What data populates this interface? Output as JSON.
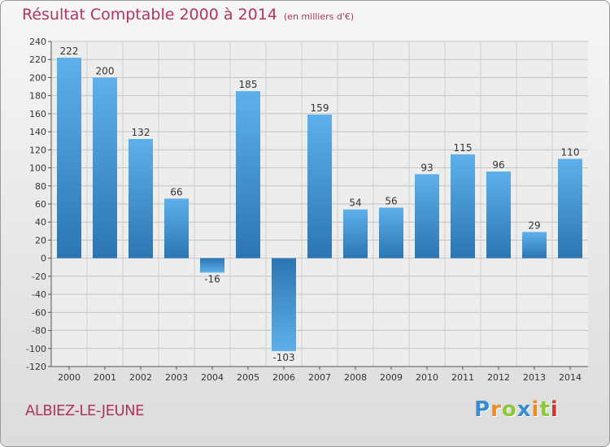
{
  "chart_data": {
    "type": "bar",
    "title": "Résultat Comptable 2000 à 2014",
    "unit_note": "(en milliers d'€)",
    "categories": [
      "2000",
      "2001",
      "2002",
      "2003",
      "2004",
      "2005",
      "2006",
      "2007",
      "2008",
      "2009",
      "2010",
      "2011",
      "2012",
      "2013",
      "2014"
    ],
    "values": [
      222,
      200,
      132,
      66,
      -16,
      185,
      -103,
      159,
      54,
      56,
      93,
      115,
      96,
      29,
      110
    ],
    "ylim": [
      -120,
      240
    ],
    "yticks": [
      240,
      220,
      200,
      180,
      160,
      140,
      120,
      100,
      80,
      60,
      40,
      20,
      0,
      -20,
      -40,
      -60,
      -80,
      -100,
      -120
    ],
    "grid": true,
    "xlabel": "",
    "ylabel": ""
  },
  "footer": {
    "town": "ALBIEZ-LE-JEUNE",
    "logo_letters": [
      "P",
      "r",
      "o",
      "x",
      "i",
      "t",
      "i"
    ]
  },
  "colors": {
    "accent": "#b0355e",
    "bar_light": "#5eb0ea",
    "bar_dark": "#2b75b3",
    "logo": [
      "#3a8bd0",
      "#f08a1f",
      "#8cc63f",
      "#3a8bd0",
      "#f08a1f",
      "#8cc63f",
      "#d9342b"
    ]
  }
}
